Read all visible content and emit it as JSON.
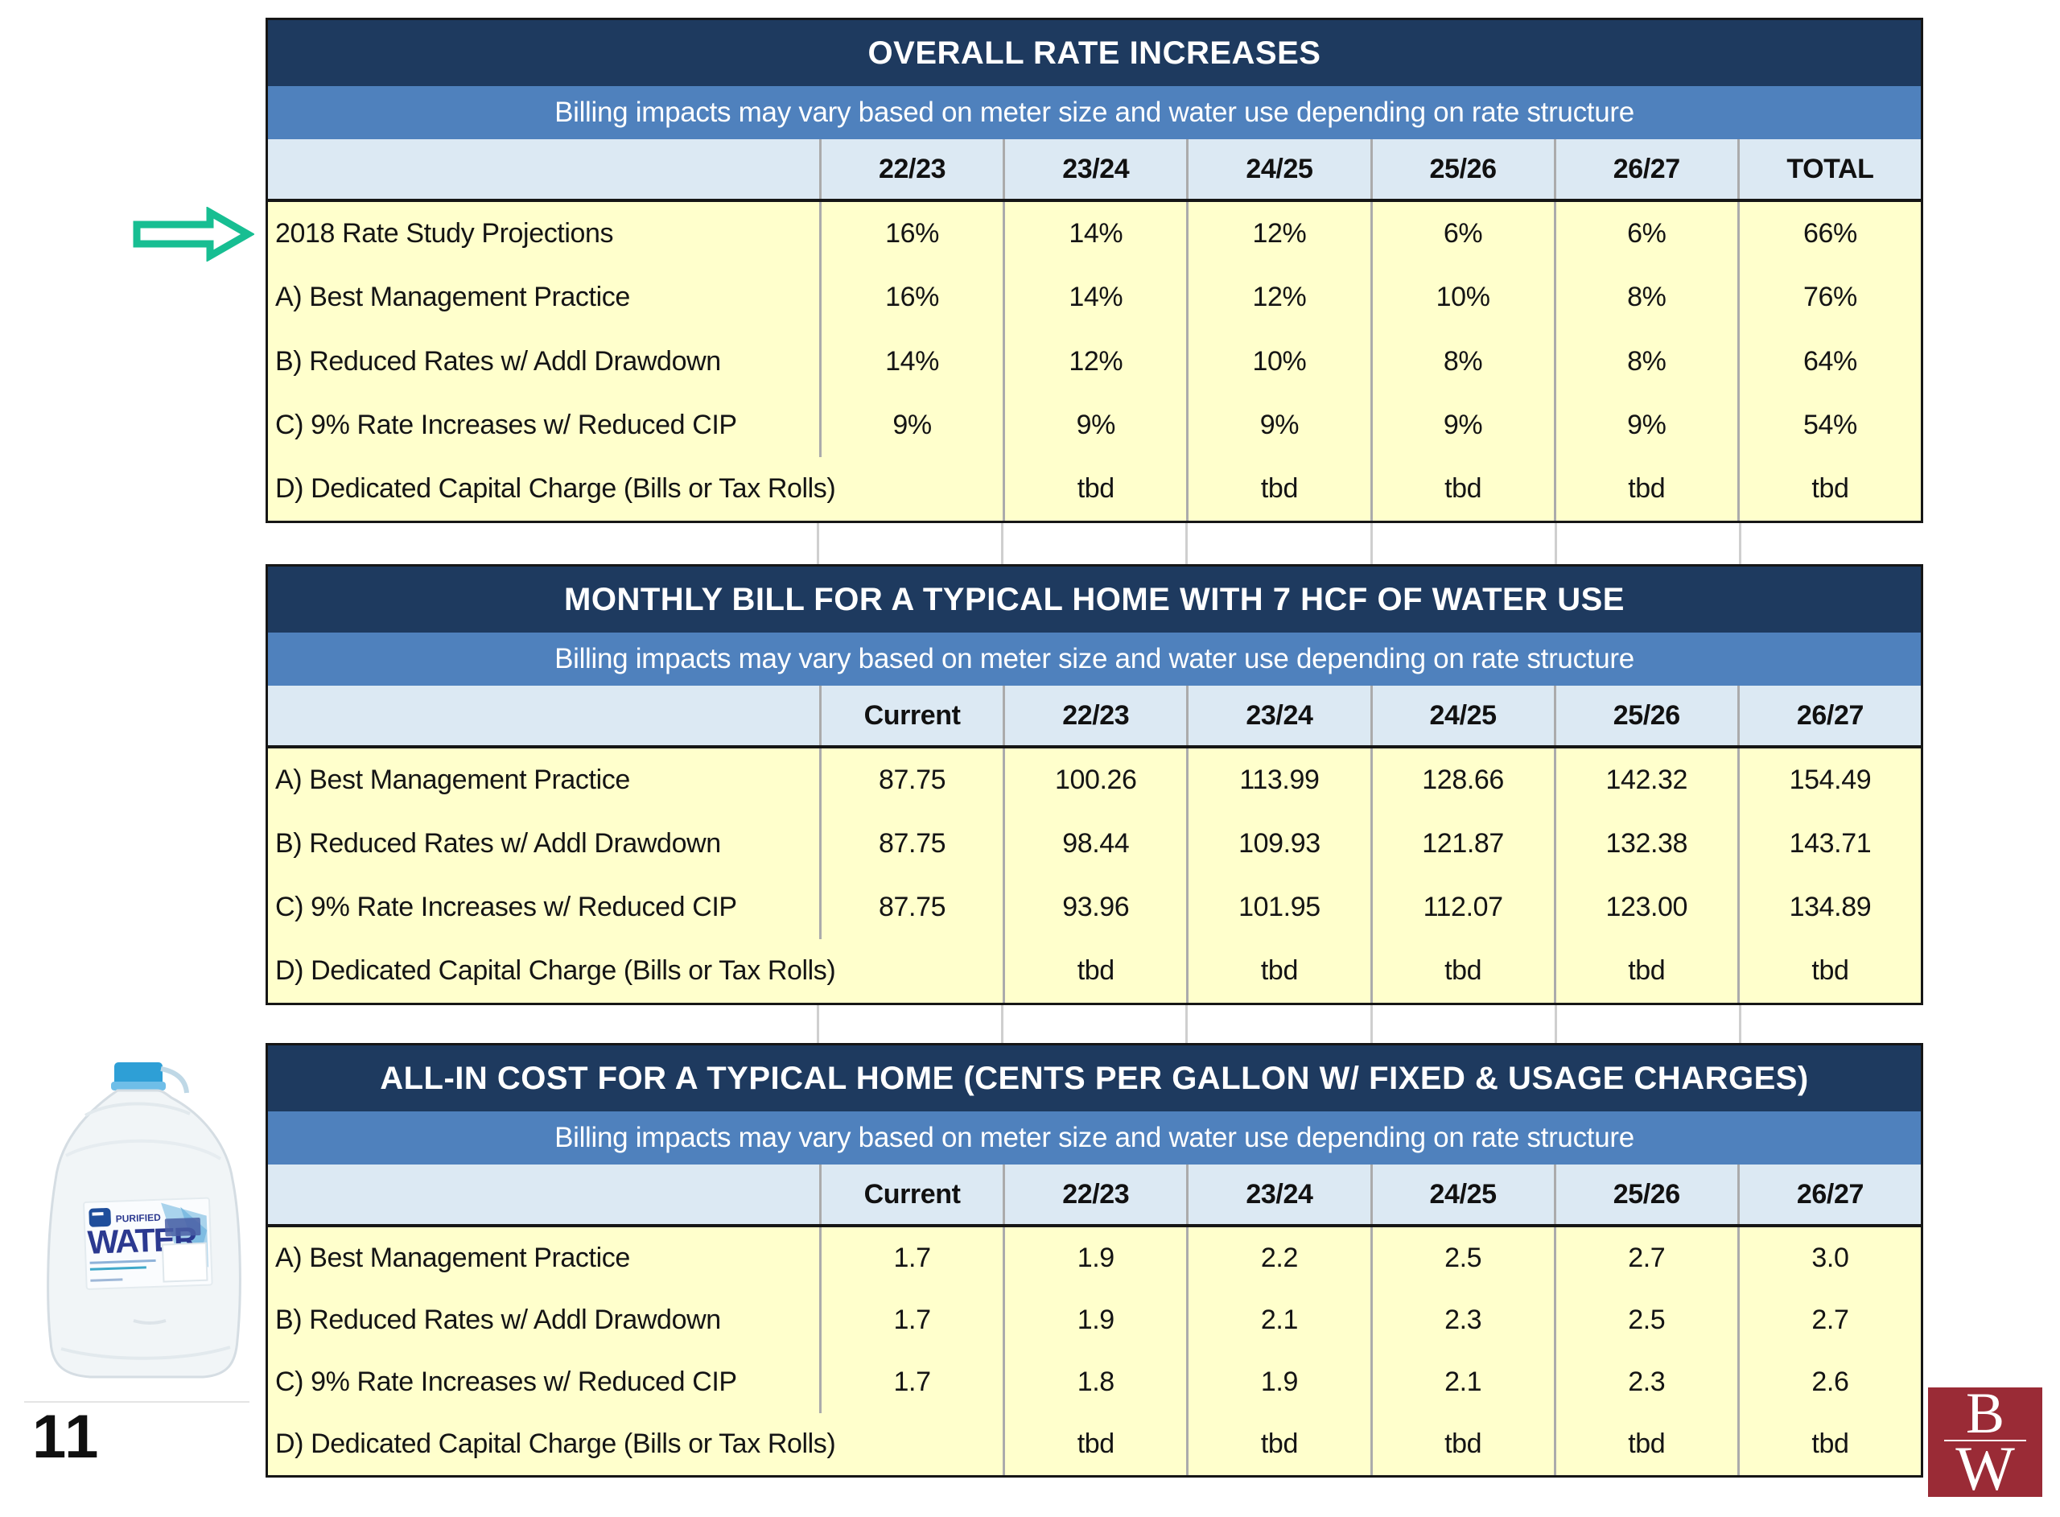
{
  "page_number": "11",
  "colors": {
    "header_navy": "#1E3A5F",
    "subtitle_blue": "#4F81BD",
    "column_header_blue": "#DCE9F3",
    "body_yellow": "#FFFFCC",
    "arrow_green": "#17BE92",
    "logo_maroon": "#9A2B36"
  },
  "jug": {
    "label_top": "PURIFIED",
    "label_main": "WATER"
  },
  "logo": {
    "letter_top": "B",
    "letter_bottom": "W"
  },
  "tables": [
    {
      "title": "OVERALL RATE INCREASES",
      "subtitle": "Billing impacts may vary based on meter size and water use depending on rate structure",
      "columns": [
        "",
        "22/23",
        "23/24",
        "24/25",
        "25/26",
        "26/27",
        "TOTAL"
      ],
      "rows": [
        {
          "label": "2018 Rate Study Projections",
          "values": [
            "16%",
            "14%",
            "12%",
            "6%",
            "6%",
            "66%"
          ]
        },
        {
          "label": "A) Best Management Practice",
          "values": [
            "16%",
            "14%",
            "12%",
            "10%",
            "8%",
            "76%"
          ]
        },
        {
          "label": "B) Reduced Rates w/ Addl Drawdown",
          "values": [
            "14%",
            "12%",
            "10%",
            "8%",
            "8%",
            "64%"
          ]
        },
        {
          "label": "C) 9% Rate Increases w/ Reduced CIP",
          "values": [
            "9%",
            "9%",
            "9%",
            "9%",
            "9%",
            "54%"
          ]
        },
        {
          "label": "D) Dedicated Capital Charge (Bills or Tax Rolls)",
          "values": [
            "",
            "tbd",
            "tbd",
            "tbd",
            "tbd",
            "tbd"
          ]
        }
      ]
    },
    {
      "title": "MONTHLY BILL FOR A TYPICAL HOME WITH 7 HCF OF WATER USE",
      "subtitle": "Billing impacts may vary based on meter size and water use depending on rate structure",
      "columns": [
        "",
        "Current",
        "22/23",
        "23/24",
        "24/25",
        "25/26",
        "26/27"
      ],
      "rows": [
        {
          "label": "A) Best Management Practice",
          "values": [
            "87.75",
            "100.26",
            "113.99",
            "128.66",
            "142.32",
            "154.49"
          ]
        },
        {
          "label": "B) Reduced Rates w/ Addl Drawdown",
          "values": [
            "87.75",
            "98.44",
            "109.93",
            "121.87",
            "132.38",
            "143.71"
          ]
        },
        {
          "label": "C) 9% Rate Increases w/ Reduced CIP",
          "values": [
            "87.75",
            "93.96",
            "101.95",
            "112.07",
            "123.00",
            "134.89"
          ]
        },
        {
          "label": "D) Dedicated Capital Charge (Bills or Tax Rolls)",
          "values": [
            "",
            "tbd",
            "tbd",
            "tbd",
            "tbd",
            "tbd"
          ]
        }
      ]
    },
    {
      "title": "ALL-IN COST FOR A TYPICAL HOME (CENTS PER GALLON W/ FIXED & USAGE CHARGES)",
      "subtitle": "Billing impacts may vary based on meter size and water use depending on rate structure",
      "columns": [
        "",
        "Current",
        "22/23",
        "23/24",
        "24/25",
        "25/26",
        "26/27"
      ],
      "rows": [
        {
          "label": "A) Best Management Practice",
          "values": [
            "1.7",
            "1.9",
            "2.2",
            "2.5",
            "2.7",
            "3.0"
          ]
        },
        {
          "label": "B) Reduced Rates w/ Addl Drawdown",
          "values": [
            "1.7",
            "1.9",
            "2.1",
            "2.3",
            "2.5",
            "2.7"
          ]
        },
        {
          "label": "C) 9% Rate Increases w/ Reduced CIP",
          "values": [
            "1.7",
            "1.8",
            "1.9",
            "2.1",
            "2.3",
            "2.6"
          ]
        },
        {
          "label": "D) Dedicated Capital Charge (Bills or Tax Rolls)",
          "values": [
            "",
            "tbd",
            "tbd",
            "tbd",
            "tbd",
            "tbd"
          ]
        }
      ]
    }
  ]
}
